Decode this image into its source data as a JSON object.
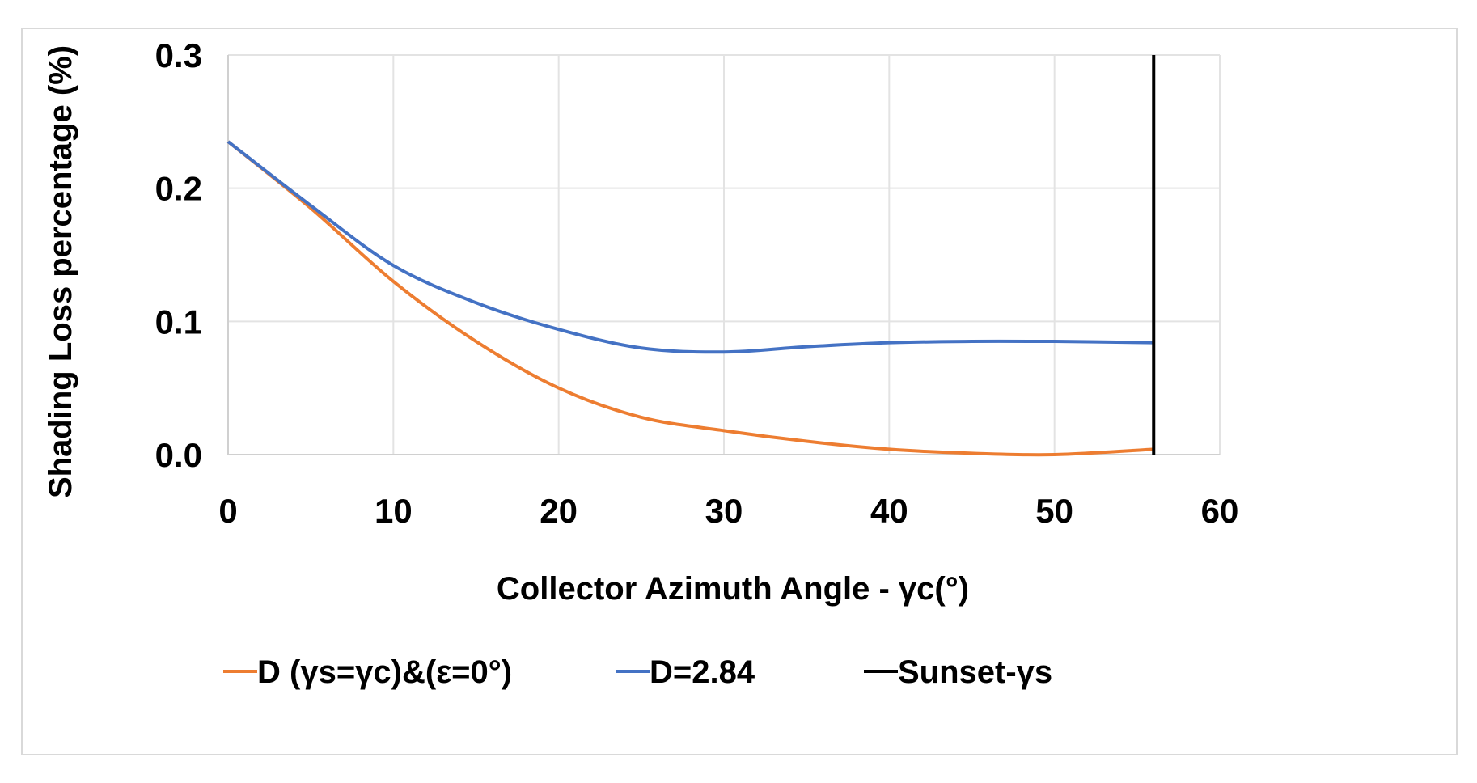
{
  "chart_data": {
    "type": "line",
    "title": "",
    "xlabel": "Collector Azimuth Angle - γc(°)",
    "ylabel": "Shading Loss percentage (%)",
    "xlim": [
      0,
      60
    ],
    "ylim": [
      0,
      0.3
    ],
    "xticks": [
      0,
      10,
      20,
      30,
      40,
      50,
      60
    ],
    "yticks": [
      0.0,
      0.1,
      0.2,
      0.3
    ],
    "xtick_labels": [
      "0",
      "10",
      "20",
      "30",
      "40",
      "50",
      "60"
    ],
    "ytick_labels": [
      "0.0",
      "0.1",
      "0.2",
      "0.3"
    ],
    "grid": true,
    "legend_position": "bottom",
    "series": [
      {
        "name": "D (γs=γc)&(ε=0°)",
        "color": "#ed7d31",
        "x": [
          0,
          5,
          10,
          15,
          20,
          25,
          30,
          35,
          40,
          45,
          50,
          56
        ],
        "values": [
          0.235,
          0.185,
          0.13,
          0.085,
          0.05,
          0.028,
          0.018,
          0.01,
          0.004,
          0.001,
          0.0,
          0.004
        ]
      },
      {
        "name": "D=2.84",
        "color": "#4472c4",
        "x": [
          0,
          5,
          10,
          15,
          20,
          25,
          30,
          35,
          40,
          45,
          50,
          56
        ],
        "values": [
          0.235,
          0.187,
          0.142,
          0.114,
          0.094,
          0.08,
          0.077,
          0.081,
          0.084,
          0.085,
          0.085,
          0.084
        ]
      },
      {
        "name": "Sunset-γs",
        "color": "#000000",
        "type": "vline",
        "x": 56
      }
    ]
  }
}
